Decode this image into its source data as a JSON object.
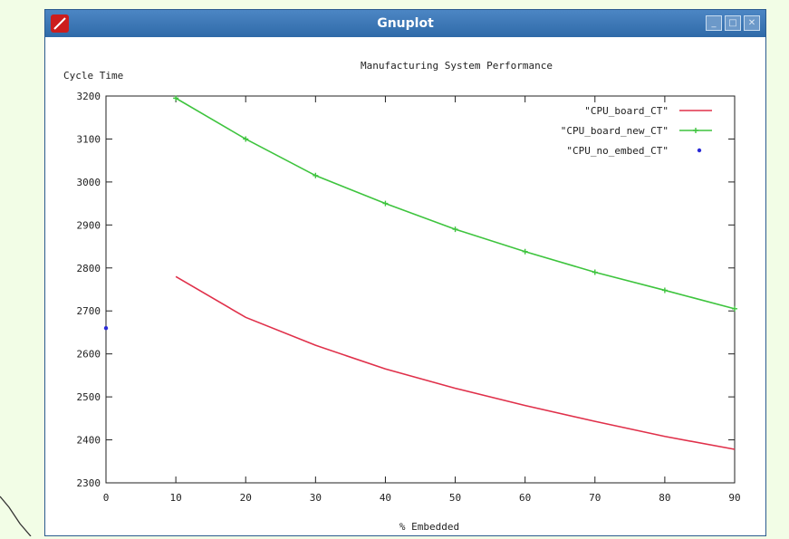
{
  "window": {
    "title": "Gnuplot",
    "controls": [
      {
        "name": "minimize-button",
        "glyph": "_"
      },
      {
        "name": "maximize-button",
        "glyph": "□"
      },
      {
        "name": "close-button",
        "glyph": "✕"
      }
    ]
  },
  "chart_data": {
    "type": "line",
    "title": "Manufacturing System Performance",
    "ylabel": "Cycle Time",
    "xlabel": "% Embedded",
    "xlim": [
      0,
      90
    ],
    "ylim": [
      2300,
      3200
    ],
    "xticks": [
      0,
      10,
      20,
      30,
      40,
      50,
      60,
      70,
      80,
      90
    ],
    "yticks": [
      2300,
      2400,
      2500,
      2600,
      2700,
      2800,
      2900,
      3000,
      3100,
      3200
    ],
    "legend_position": "top-right",
    "grid": false,
    "series": [
      {
        "name": "\"CPU_board_CT\"",
        "style": "line",
        "color": "#e0304a",
        "x": [
          10,
          20,
          30,
          40,
          50,
          60,
          70,
          80,
          90
        ],
        "y": [
          2780,
          2685,
          2620,
          2565,
          2520,
          2480,
          2443,
          2408,
          2378
        ]
      },
      {
        "name": "\"CPU_board_new_CT\"",
        "style": "linepoints",
        "color": "#3ec43e",
        "x": [
          10,
          20,
          30,
          40,
          50,
          60,
          70,
          80,
          90
        ],
        "y": [
          3195,
          3100,
          3015,
          2950,
          2890,
          2838,
          2790,
          2748,
          2705
        ]
      },
      {
        "name": "\"CPU_no_embed_CT\"",
        "style": "points",
        "color": "#2b2bd6",
        "x": [
          0
        ],
        "y": [
          2660
        ]
      }
    ]
  }
}
